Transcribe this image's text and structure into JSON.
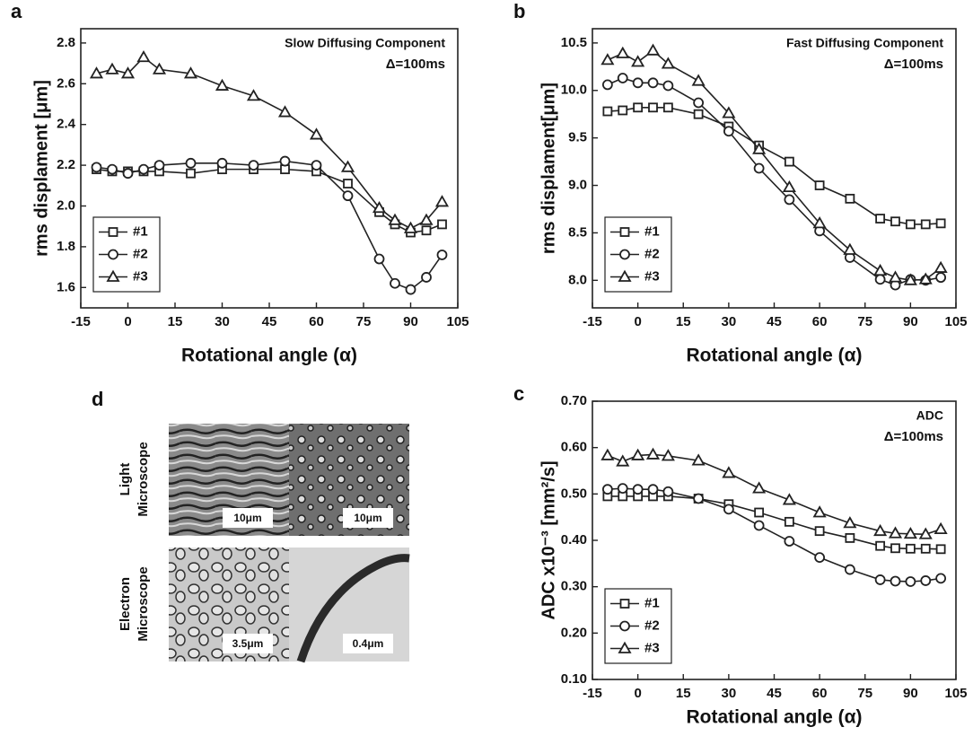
{
  "chart_data": [
    {
      "type": "line",
      "panel_label": "a",
      "xlabel": "Rotational angle (α)",
      "ylabel": "rms displament [μm]",
      "annotations": [
        "Slow Diffusing Component",
        "Δ=100ms"
      ],
      "x": [
        -10,
        -5,
        0,
        5,
        10,
        20,
        30,
        40,
        50,
        60,
        70,
        80,
        85,
        90,
        95,
        100
      ],
      "xlim": [
        -15,
        105
      ],
      "xticks": [
        -15,
        0,
        15,
        30,
        45,
        60,
        75,
        90,
        105
      ],
      "ylim": [
        1.5,
        2.87
      ],
      "yticks": [
        1.6,
        1.8,
        {
          "value": 2.0,
          "label": "2.0"
        },
        2.2,
        2.4,
        2.6,
        2.8
      ],
      "legend": "lower left",
      "series": [
        {
          "name": "#1",
          "color": "#222222",
          "marker": "square",
          "values": [
            2.18,
            2.17,
            2.17,
            2.17,
            2.17,
            2.16,
            2.18,
            2.18,
            2.18,
            2.17,
            2.11,
            1.97,
            1.91,
            1.87,
            1.88,
            1.91
          ]
        },
        {
          "name": "#2",
          "color": "#222222",
          "marker": "circle",
          "values": [
            2.19,
            2.18,
            2.16,
            2.18,
            2.2,
            2.21,
            2.21,
            2.2,
            2.22,
            2.2,
            2.05,
            1.74,
            1.62,
            1.59,
            1.65,
            1.76
          ]
        },
        {
          "name": "#3",
          "color": "#222222",
          "marker": "triangle",
          "values": [
            2.65,
            2.67,
            2.65,
            2.73,
            2.67,
            2.65,
            2.59,
            2.54,
            2.46,
            2.35,
            2.19,
            1.99,
            1.93,
            1.89,
            1.93,
            2.02
          ]
        }
      ]
    },
    {
      "type": "line",
      "panel_label": "b",
      "xlabel": "Rotational angle (α)",
      "ylabel": "rms displament[μm]",
      "annotations": [
        "Fast Diffusing Component",
        "Δ=100ms"
      ],
      "x": [
        -10,
        -5,
        0,
        5,
        10,
        20,
        30,
        40,
        50,
        60,
        70,
        80,
        85,
        90,
        95,
        100
      ],
      "xlim": [
        -15,
        105
      ],
      "xticks": [
        -15,
        0,
        15,
        30,
        45,
        60,
        75,
        90,
        105
      ],
      "ylim": [
        7.71,
        10.65
      ],
      "yticks": [
        {
          "value": 8.0,
          "label": "8.0"
        },
        8.5,
        {
          "value": 9.0,
          "label": "9.0"
        },
        9.5,
        {
          "value": 10.0,
          "label": "10.0"
        },
        10.5
      ],
      "legend": "lower left",
      "series": [
        {
          "name": "#1",
          "color": "#222222",
          "marker": "square",
          "values": [
            9.78,
            9.79,
            9.82,
            9.82,
            9.82,
            9.75,
            9.62,
            9.42,
            9.25,
            9.0,
            8.86,
            8.65,
            8.62,
            8.59,
            8.59,
            8.6
          ]
        },
        {
          "name": "#2",
          "color": "#222222",
          "marker": "circle",
          "values": [
            10.06,
            10.13,
            10.08,
            10.08,
            10.05,
            9.87,
            9.57,
            9.18,
            8.85,
            8.52,
            8.24,
            8.01,
            7.95,
            8.01,
            8.0,
            8.03
          ]
        },
        {
          "name": "#3",
          "color": "#222222",
          "marker": "triangle",
          "values": [
            10.32,
            10.39,
            10.3,
            10.42,
            10.28,
            10.1,
            9.76,
            9.38,
            8.98,
            8.6,
            8.32,
            8.1,
            8.03,
            8.0,
            8.01,
            8.13
          ]
        }
      ]
    },
    {
      "type": "line",
      "panel_label": "c",
      "xlabel": "Rotational angle (α)",
      "ylabel": "ADC x10⁻³ [mm²/s]",
      "annotations": [
        "ADC",
        "Δ=100ms"
      ],
      "x": [
        -10,
        -5,
        0,
        5,
        10,
        20,
        30,
        40,
        50,
        60,
        70,
        80,
        85,
        90,
        95,
        100
      ],
      "xlim": [
        -15,
        105
      ],
      "xticks": [
        -15,
        0,
        15,
        30,
        45,
        60,
        75,
        90,
        105
      ],
      "ylim": [
        0.1,
        0.7
      ],
      "yticks": [
        {
          "value": 0.1,
          "label": "0.10"
        },
        {
          "value": 0.2,
          "label": "0.20"
        },
        {
          "value": 0.3,
          "label": "0.30"
        },
        {
          "value": 0.4,
          "label": "0.40"
        },
        {
          "value": 0.5,
          "label": "0.50"
        },
        {
          "value": 0.6,
          "label": "0.60"
        },
        {
          "value": 0.7,
          "label": "0.70"
        }
      ],
      "legend": "lower left",
      "series": [
        {
          "name": "#1",
          "color": "#222222",
          "marker": "square",
          "values": [
            0.495,
            0.495,
            0.495,
            0.495,
            0.495,
            0.49,
            0.478,
            0.46,
            0.44,
            0.42,
            0.405,
            0.388,
            0.383,
            0.382,
            0.382,
            0.381
          ]
        },
        {
          "name": "#2",
          "color": "#222222",
          "marker": "circle",
          "values": [
            0.51,
            0.512,
            0.51,
            0.51,
            0.505,
            0.49,
            0.467,
            0.432,
            0.398,
            0.363,
            0.337,
            0.315,
            0.312,
            0.311,
            0.313,
            0.318
          ]
        },
        {
          "name": "#3",
          "color": "#222222",
          "marker": "triangle",
          "values": [
            0.583,
            0.57,
            0.583,
            0.585,
            0.582,
            0.572,
            0.545,
            0.512,
            0.487,
            0.46,
            0.437,
            0.42,
            0.415,
            0.414,
            0.413,
            0.424
          ]
        }
      ]
    }
  ],
  "panel_d": {
    "label": "d",
    "rows": [
      {
        "label_lines": [
          "Light",
          "Microscope"
        ],
        "scale_bars": [
          "10μm",
          "10μm"
        ]
      },
      {
        "label_lines": [
          "Electron",
          "Microscope"
        ],
        "scale_bars": [
          "3.5μm",
          "0.4μm"
        ]
      }
    ]
  }
}
